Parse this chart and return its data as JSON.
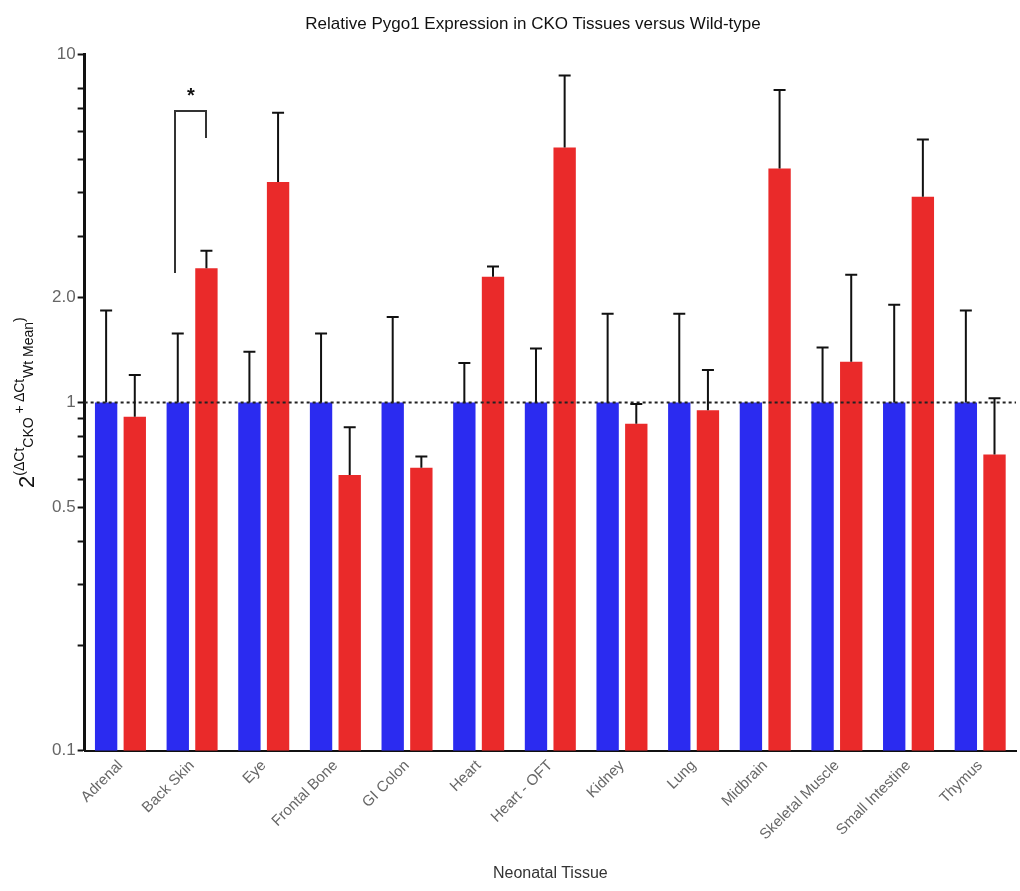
{
  "chart_data": {
    "type": "bar",
    "title": "Relative Pygo1 Expression in CKO Tissues versus Wild-type",
    "xlabel": "Neonatal Tissue",
    "ylabel": "2$^{(ΔCt}$$_{CKO}$$^{ + ΔCt}$$_{Wt Mean}$$^{)}$",
    "categories": [
      "Adrenal",
      "Back Skin",
      "Eye",
      "Frontal Bone",
      "GI Colon",
      "Heart",
      "Heart - OFT",
      "Kidney",
      "Lung",
      "Midbrain",
      "Skeletal Muscle",
      "Small Intestine",
      "Thymus"
    ],
    "series": [
      {
        "color": "#2b2bf0",
        "values": [
          1,
          1,
          1,
          1,
          1,
          1,
          1,
          1,
          1,
          1,
          1,
          1,
          1
        ],
        "errors": [
          [
            1,
            1.84
          ],
          [
            1,
            1.58
          ],
          [
            1,
            1.4
          ],
          [
            1,
            1.58
          ],
          [
            1,
            1.76
          ],
          [
            1,
            1.3
          ],
          [
            1,
            1.43
          ],
          [
            1,
            1.8
          ],
          [
            1,
            1.8
          ],
          null,
          [
            1,
            1.44
          ],
          [
            1,
            1.91
          ],
          [
            1,
            1.84
          ]
        ]
      },
      {
        "color": "#ea2a2a",
        "values": [
          0.91,
          2.43,
          4.3,
          0.62,
          0.65,
          2.3,
          5.4,
          0.87,
          0.95,
          4.7,
          1.31,
          3.9,
          0.71
        ],
        "errors": [
          [
            0.91,
            1.2
          ],
          [
            2.43,
            2.73
          ],
          [
            4.3,
            6.8
          ],
          [
            0.62,
            0.85
          ],
          [
            0.65,
            0.7
          ],
          [
            2.3,
            2.46
          ],
          [
            5.4,
            8.7
          ],
          [
            0.87,
            0.99
          ],
          [
            0.95,
            1.24
          ],
          [
            4.7,
            7.9
          ],
          [
            1.31,
            2.33
          ],
          [
            3.9,
            5.7
          ],
          [
            0.71,
            1.03
          ]
        ]
      }
    ],
    "log": "y",
    "ylim": [
      0.1,
      10
    ],
    "yticks": [
      0.1,
      {
        "value": 0.2,
        "label": null
      },
      {
        "value": 0.3,
        "label": null
      },
      {
        "value": 0.4,
        "label": null
      },
      0.5,
      {
        "value": 0.6,
        "label": null
      },
      {
        "value": 0.7,
        "label": null
      },
      {
        "value": 0.8,
        "label": null
      },
      {
        "value": 0.9,
        "label": null
      },
      1,
      {
        "value": 2,
        "label": "2.0"
      },
      {
        "value": 3,
        "label": null
      },
      {
        "value": 4,
        "label": null
      },
      {
        "value": 5,
        "label": null
      },
      {
        "value": 6,
        "label": null
      },
      {
        "value": 7,
        "label": null
      },
      {
        "value": 8,
        "label": null
      },
      10
    ],
    "ref_lines": [
      {
        "axis": "y",
        "value": 1,
        "line_style": "dotted",
        "color": "#222222"
      }
    ],
    "annotations": [
      "*"
    ],
    "grid": false,
    "legend": false
  }
}
